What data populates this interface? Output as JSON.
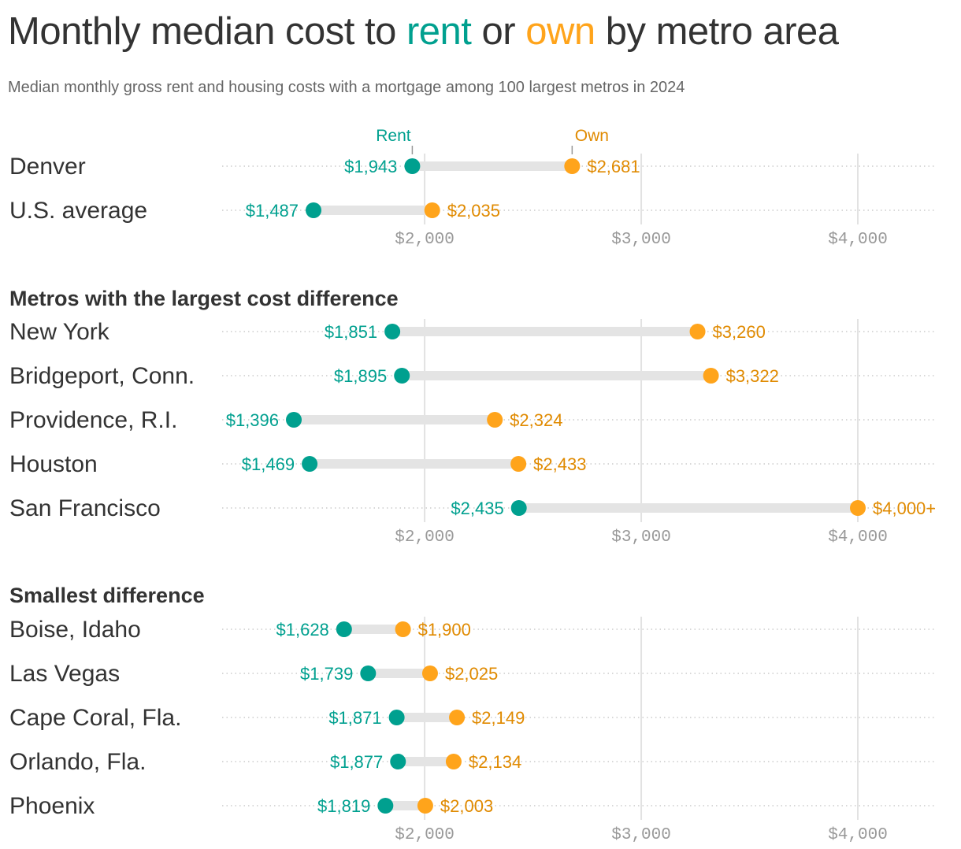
{
  "title": {
    "part1": "Monthly median cost to ",
    "rent": "rent",
    "part2": " or ",
    "own": "own",
    "part3": " by metro area"
  },
  "subtitle": "Median monthly gross rent and housing costs with a mortgage among 100 largest metros in 2024",
  "colors": {
    "rent": "#00a08f",
    "own": "#ffa41b",
    "own_text": "#e08a00",
    "bar": "#e4e4e4"
  },
  "chart_data": {
    "type": "dumbbell",
    "legend": {
      "rent": "Rent",
      "own": "Own"
    },
    "xlim": [
      1065,
      4360
    ],
    "xticks": [
      {
        "value": 2000,
        "label": "$2,000"
      },
      {
        "value": 3000,
        "label": "$3,000"
      },
      {
        "value": 4000,
        "label": "$4,000"
      }
    ],
    "grid": true,
    "panels": [
      {
        "heading": "",
        "rows": [
          {
            "name": "Denver",
            "rent": 1943,
            "rent_label": "$1,943",
            "own": 2681,
            "own_label": "$2,681"
          },
          {
            "name": "U.S. average",
            "rent": 1487,
            "rent_label": "$1,487",
            "own": 2035,
            "own_label": "$2,035"
          }
        ]
      },
      {
        "heading": "Metros with the largest cost difference",
        "rows": [
          {
            "name": "New York",
            "rent": 1851,
            "rent_label": "$1,851",
            "own": 3260,
            "own_label": "$3,260"
          },
          {
            "name": "Bridgeport, Conn.",
            "rent": 1895,
            "rent_label": "$1,895",
            "own": 3322,
            "own_label": "$3,322"
          },
          {
            "name": "Providence, R.I.",
            "rent": 1396,
            "rent_label": "$1,396",
            "own": 2324,
            "own_label": "$2,324"
          },
          {
            "name": "Houston",
            "rent": 1469,
            "rent_label": "$1,469",
            "own": 2433,
            "own_label": "$2,433"
          },
          {
            "name": "San Francisco",
            "rent": 2435,
            "rent_label": "$2,435",
            "own": 4000,
            "own_label": "$4,000+"
          }
        ]
      },
      {
        "heading": "Smallest difference",
        "rows": [
          {
            "name": "Boise, Idaho",
            "rent": 1628,
            "rent_label": "$1,628",
            "own": 1900,
            "own_label": "$1,900"
          },
          {
            "name": "Las Vegas",
            "rent": 1739,
            "rent_label": "$1,739",
            "own": 2025,
            "own_label": "$2,025"
          },
          {
            "name": "Cape Coral, Fla.",
            "rent": 1871,
            "rent_label": "$1,871",
            "own": 2149,
            "own_label": "$2,149"
          },
          {
            "name": "Orlando, Fla.",
            "rent": 1877,
            "rent_label": "$1,877",
            "own": 2134,
            "own_label": "$2,134"
          },
          {
            "name": "Phoenix",
            "rent": 1819,
            "rent_label": "$1,819",
            "own": 2003,
            "own_label": "$2,003"
          }
        ]
      }
    ]
  }
}
